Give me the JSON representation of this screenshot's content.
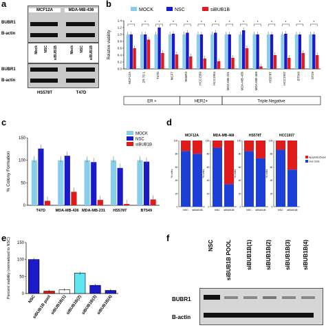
{
  "panels": {
    "a": {
      "label": "a",
      "titles": [
        "MCF12A",
        "MDA-MB-436"
      ],
      "bottom_titles": [
        "HS578T",
        "T47D"
      ],
      "rows": [
        "BUBR1",
        "B-actin"
      ],
      "lanes": [
        "Mock",
        "NSC",
        "siBUB1B"
      ]
    },
    "b": {
      "label": "b"
    },
    "c": {
      "label": "c"
    },
    "d": {
      "label": "d"
    },
    "e": {
      "label": "e"
    },
    "f": {
      "label": "f",
      "rows": [
        "BUBR1",
        "B-actin"
      ],
      "lanes": [
        "NSC",
        "siBUB1B POOL",
        "siBUB1B(1)",
        "siBUB1B(2)",
        "siBUB1B(3)",
        "siBUB1B(4)"
      ]
    }
  },
  "colors": {
    "mock": "#87ceeb",
    "nsc": "#1a1ac8",
    "sibub1b": "#e01b1b",
    "live": "#1c3fd6",
    "apoptotic": "#e01b1b"
  },
  "chart_data": [
    {
      "id": "b",
      "type": "bar",
      "ylabel": "Relative viability",
      "ylim": [
        0,
        1.4
      ],
      "yticks": [
        0.0,
        0.2,
        0.4,
        0.6,
        0.8,
        1.0,
        1.2,
        1.4
      ],
      "legend_position": "top",
      "categories": [
        "MCF12A",
        "ZR-75-1",
        "T47D",
        "MCF7",
        "SKBR3",
        "HCC1569",
        "HCC1954",
        "MDA-MB-231",
        "MDA-MB-436",
        "MDA-MB-468",
        "HS578T",
        "HCC1937",
        "BT549",
        "DT29"
      ],
      "series": [
        {
          "name": "MOCK",
          "values": [
            1.0,
            1.0,
            1.0,
            1.0,
            1.0,
            1.0,
            1.0,
            1.0,
            1.0,
            1.0,
            1.0,
            1.0,
            1.0,
            1.0
          ]
        },
        {
          "name": "NSC",
          "values": [
            1.0,
            1.0,
            1.2,
            1.02,
            1.05,
            1.0,
            1.05,
            1.0,
            1.12,
            1.0,
            1.0,
            1.02,
            1.0,
            1.0
          ]
        },
        {
          "name": "siBUB1B",
          "values": [
            0.6,
            0.85,
            0.46,
            0.42,
            0.36,
            0.3,
            0.22,
            0.32,
            0.6,
            0.07,
            0.4,
            0.32,
            0.46,
            0.4
          ]
        }
      ],
      "groups": [
        {
          "label": "ER +",
          "from": 0,
          "to": 3
        },
        {
          "label": "HER2+",
          "from": 4,
          "to": 6
        },
        {
          "label": "Triple Negative",
          "from": 7,
          "to": 13
        }
      ],
      "significance": "*"
    },
    {
      "id": "c",
      "type": "bar",
      "ylabel": "% Colony Formation",
      "ylim": [
        0,
        150
      ],
      "yticks": [
        0,
        50,
        100,
        150
      ],
      "legend_position": "top-right",
      "categories": [
        "T47D",
        "MDA-MB-436",
        "MDA-MB-231",
        "HS578T",
        "BT549"
      ],
      "series": [
        {
          "name": "MOCK",
          "values": [
            100,
            100,
            100,
            100,
            100
          ]
        },
        {
          "name": "NSC",
          "values": [
            126,
            110,
            96,
            83,
            97
          ]
        },
        {
          "name": "siBUB1B",
          "values": [
            10,
            30,
            12,
            3,
            13
          ]
        }
      ]
    },
    {
      "id": "d",
      "type": "bar",
      "stacked": true,
      "ylabel": "% cells",
      "ylim": [
        0,
        100
      ],
      "yticks": [
        0,
        20,
        40,
        60,
        80,
        100
      ],
      "legend_position": "right",
      "series_names": [
        "Apoptotic/Dead Cells",
        "Live Cells"
      ],
      "subplots": [
        {
          "title": "MCF12A",
          "categories": [
            "NSC",
            "siBUB1B"
          ],
          "live": [
            84,
            80
          ]
        },
        {
          "title": "MDA-MB-468",
          "categories": [
            "NSC",
            "siBUB1B"
          ],
          "live": [
            89,
            34
          ]
        },
        {
          "title": "HS578T",
          "categories": [
            "NSC",
            "siBUB1B"
          ],
          "live": [
            84,
            73
          ]
        },
        {
          "title": "HCC1937",
          "categories": [
            "NSC",
            "siBUB1B"
          ],
          "live": [
            86,
            56
          ]
        }
      ]
    },
    {
      "id": "e",
      "type": "bar",
      "ylabel": "Percent viability (normalized to NSC)",
      "ylim": [
        0,
        150
      ],
      "yticks": [
        0,
        50,
        100,
        150
      ],
      "categories": [
        "NSC",
        "siBUB1B pool",
        "siBUB1B(1)",
        "siBUB1B(2)",
        "siBUB1B(3)",
        "siBUB1B(4)"
      ],
      "values": [
        100,
        7,
        11,
        60,
        24,
        9
      ],
      "bar_colors": [
        "#1a1ac8",
        "#e01b1b",
        "#ffffff",
        "#5fe6f0",
        "#1a1ac8",
        "#1a1ac8"
      ]
    }
  ]
}
